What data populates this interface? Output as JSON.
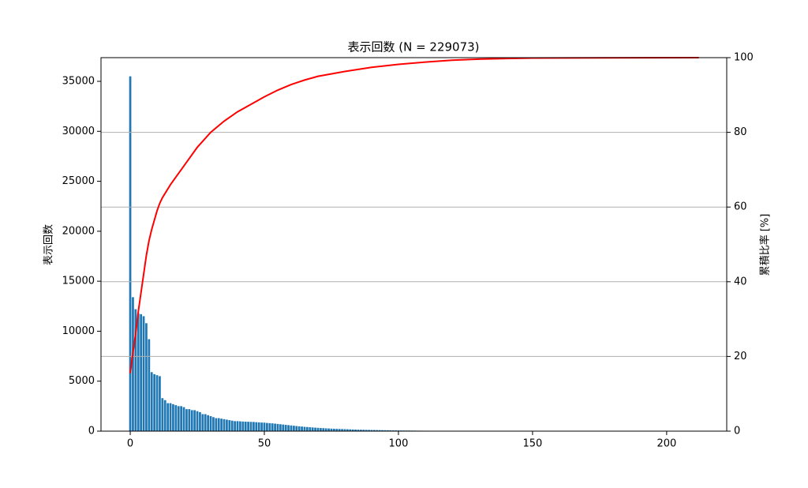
{
  "chart_data": {
    "type": "bar",
    "title": "表示回数 (N = 229073)",
    "ylabel": "表示回数",
    "y2label": "累積比率 [%]",
    "xlim": [
      -10.9,
      222.4
    ],
    "xticks": [
      0,
      50,
      100,
      150,
      200
    ],
    "ylim": [
      0,
      37370
    ],
    "yticks": [
      0,
      5000,
      10000,
      15000,
      20000,
      25000,
      30000,
      35000
    ],
    "y2lim": [
      0,
      100
    ],
    "y2ticks": [
      0,
      20,
      40,
      60,
      80,
      100
    ],
    "grid": "y2",
    "series": [
      {
        "type": "bar",
        "color": "#1f77b4",
        "x": [
          0,
          1,
          2,
          3,
          4,
          5,
          6,
          7,
          8,
          9,
          10,
          11,
          12,
          13,
          14,
          15,
          16,
          17,
          18,
          19,
          20,
          21,
          22,
          23,
          24,
          25,
          26,
          27,
          28,
          29,
          30,
          31,
          32,
          33,
          34,
          35,
          36,
          37,
          38,
          39,
          40,
          41,
          42,
          43,
          44,
          45,
          46,
          47,
          48,
          49,
          50,
          51,
          52,
          53,
          54,
          55,
          56,
          57,
          58,
          59,
          60,
          61,
          62,
          63,
          64,
          65,
          66,
          67,
          68,
          69,
          70,
          71,
          72,
          73,
          74,
          75,
          76,
          77,
          78,
          79,
          80,
          81,
          82,
          83,
          84,
          85,
          86,
          87,
          88,
          89,
          90,
          91,
          92,
          93,
          94,
          95,
          96,
          97,
          98,
          99,
          100,
          101,
          102,
          103,
          104,
          105,
          106,
          107,
          108,
          109,
          110,
          111,
          112,
          113,
          114,
          115,
          116,
          117,
          118,
          119,
          120,
          121,
          122,
          123,
          124,
          125,
          126,
          127,
          128,
          129,
          130
        ],
        "values": [
          35500,
          13400,
          12200,
          11800,
          11700,
          11500,
          10800,
          9200,
          5900,
          5700,
          5600,
          5500,
          3300,
          3100,
          2800,
          2800,
          2700,
          2600,
          2500,
          2500,
          2400,
          2200,
          2200,
          2100,
          2100,
          2000,
          1900,
          1700,
          1700,
          1600,
          1500,
          1400,
          1300,
          1300,
          1250,
          1200,
          1150,
          1100,
          1050,
          1000,
          1000,
          980,
          960,
          950,
          940,
          930,
          920,
          900,
          880,
          860,
          850,
          820,
          800,
          780,
          750,
          720,
          690,
          660,
          630,
          600,
          570,
          540,
          510,
          480,
          460,
          430,
          410,
          390,
          370,
          350,
          330,
          310,
          300,
          280,
          270,
          250,
          240,
          230,
          220,
          210,
          200,
          190,
          180,
          170,
          160,
          150,
          145,
          140,
          130,
          125,
          120,
          115,
          110,
          105,
          100,
          95,
          90,
          85,
          80,
          75,
          70,
          65,
          62,
          60,
          57,
          54,
          51,
          48,
          45,
          43,
          40,
          38,
          36,
          34,
          32,
          30,
          28,
          26,
          24,
          22,
          20,
          18,
          17,
          16,
          15,
          14,
          13,
          12,
          10,
          9,
          8
        ]
      },
      {
        "type": "line",
        "axis": "y2",
        "color": "#ff0000",
        "x": [
          0,
          1,
          2,
          3,
          4,
          5,
          6,
          7,
          8,
          9,
          10,
          11,
          12,
          15,
          20,
          25,
          30,
          35,
          40,
          45,
          50,
          55,
          60,
          65,
          70,
          80,
          90,
          100,
          110,
          120,
          130,
          150,
          212
        ],
        "values": [
          15.5,
          21,
          26,
          32,
          37,
          42,
          47,
          51,
          54,
          56.5,
          59,
          61,
          62.5,
          66,
          71,
          76,
          80,
          83,
          85.5,
          87.5,
          89.5,
          91.3,
          92.8,
          94,
          95,
          96.3,
          97.4,
          98.2,
          98.8,
          99.3,
          99.6,
          99.9,
          100
        ]
      }
    ]
  }
}
